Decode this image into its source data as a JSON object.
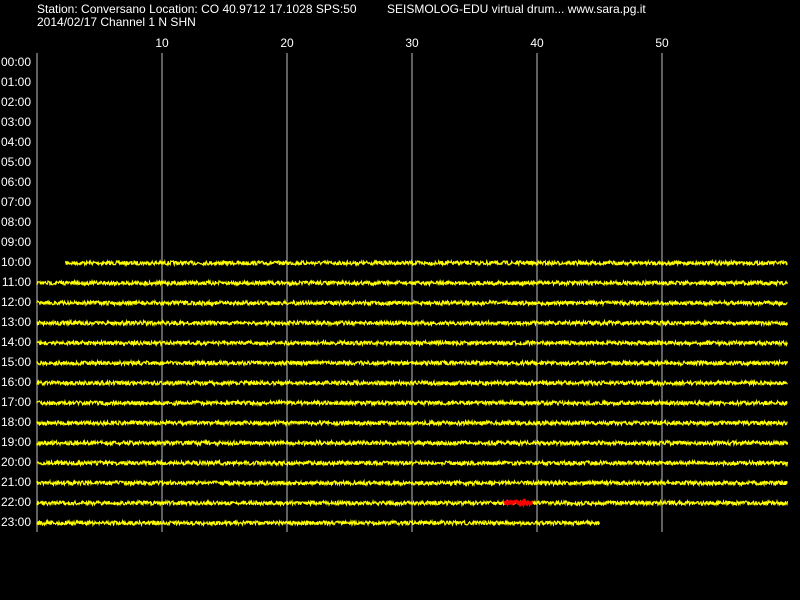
{
  "chart_data": {
    "type": "helicorder",
    "title": "Station: Conversano Location: CO 40.9712 17.1028 SPS:50",
    "subtitle": "2014/02/17  Channel 1 N SHN",
    "annotation": "SEISMOLOG-EDU virtual drum... www.sara.pg.it",
    "categories": [
      "00:00",
      "01:00",
      "02:00",
      "03:00",
      "04:00",
      "05:00",
      "06:00",
      "07:00",
      "08:00",
      "09:00",
      "10:00",
      "11:00",
      "12:00",
      "13:00",
      "14:00",
      "15:00",
      "16:00",
      "17:00",
      "18:00",
      "19:00",
      "20:00",
      "21:00",
      "22:00",
      "23:00"
    ],
    "start": [
      null,
      null,
      null,
      null,
      null,
      null,
      null,
      null,
      null,
      null,
      2.3,
      0,
      0,
      0,
      0,
      0,
      0,
      0,
      0,
      0,
      0,
      0,
      0,
      0
    ],
    "end": [
      null,
      null,
      null,
      null,
      null,
      null,
      null,
      null,
      null,
      null,
      60,
      60,
      60,
      60,
      60,
      60,
      60,
      60,
      60,
      60,
      60,
      60,
      60,
      45
    ],
    "color": "#ffff00",
    "events": [
      {
        "hour": "22:00",
        "start": 37.4,
        "end": 39.6,
        "color": "#ff0000"
      }
    ],
    "xlim": [
      0,
      60
    ],
    "xticks": [
      10,
      20,
      30,
      40,
      50
    ],
    "grid": true
  }
}
